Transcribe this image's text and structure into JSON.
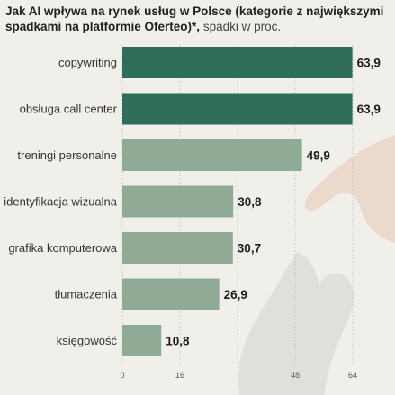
{
  "title_bold": "Jak AI wpływa na rynek usług w Polsce  (kategorie z największymi spadkami na platformie Oferteo)*,",
  "title_light": " spadki w proc.",
  "colors": {
    "background": "#f1efe9",
    "bar_top": "#2e6e58",
    "bar_rest": "#8fab95"
  },
  "chart_data": {
    "type": "bar",
    "orientation": "horizontal",
    "categories": [
      "copywriting",
      "obsługa call center",
      "treningi personalne",
      "identyfikacja wizualna",
      "grafika komputerowa",
      "tłumaczenia",
      "księgowość"
    ],
    "values": [
      63.9,
      63.9,
      49.9,
      30.8,
      30.7,
      26.9,
      10.8
    ],
    "value_labels": [
      "63,9",
      "63,9",
      "49,9",
      "30,8",
      "30,7",
      "26,9",
      "10,8"
    ],
    "xlim": [
      0,
      64
    ],
    "ticks": [
      0,
      16,
      32,
      48,
      64
    ],
    "tick_labels": [
      "0",
      "16",
      "",
      "48",
      "64"
    ]
  }
}
